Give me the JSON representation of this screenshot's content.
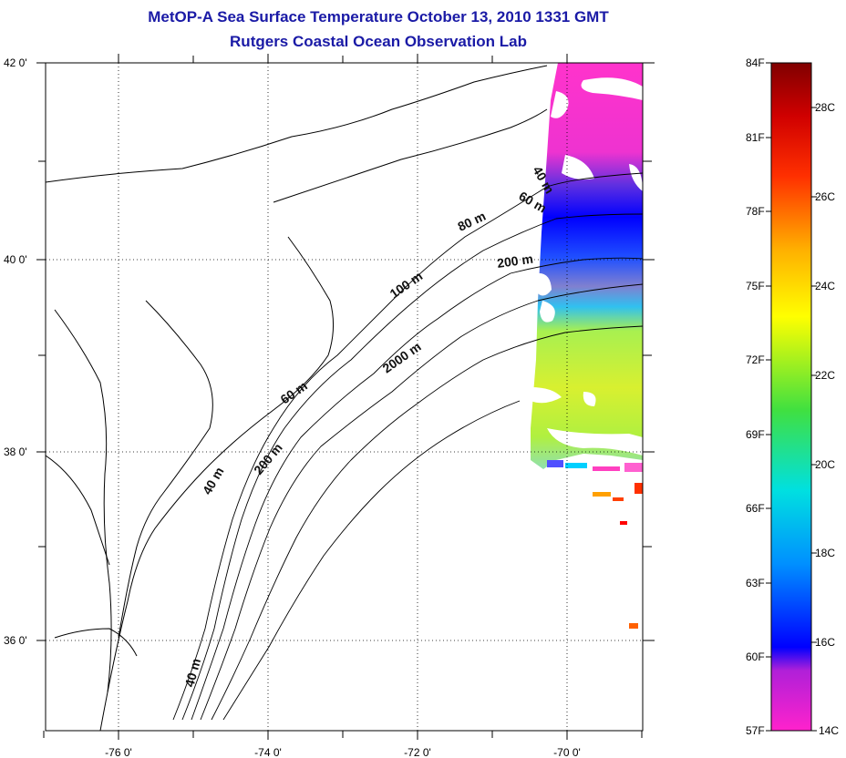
{
  "header": {
    "title": "MetOP-A Sea Surface Temperature October 13, 2010 1331 GMT",
    "subtitle": "Rutgers Coastal Ocean Observation Lab"
  },
  "map": {
    "lon_ticks": [
      "-76 0'",
      "-74 0'",
      "-72 0'",
      "-70 0'"
    ],
    "lat_ticks": [
      "42 0'",
      "40 0'",
      "38 0'",
      "36 0'"
    ],
    "depth_labels": [
      "40 m",
      "60 m",
      "80 m",
      "200 m",
      "100 m",
      "2000 m",
      "60 m",
      "40 m",
      "200 m",
      "40 m"
    ]
  },
  "colorbar": {
    "fahrenheit": [
      "84F",
      "81F",
      "78F",
      "75F",
      "72F",
      "69F",
      "66F",
      "63F",
      "60F",
      "57F"
    ],
    "celsius": [
      "28C",
      "26C",
      "24C",
      "22C",
      "20C",
      "18C",
      "16C",
      "14C"
    ],
    "colors": [
      "#ff22cc",
      "#8a1fd8",
      "#0000ff",
      "#00a0ff",
      "#00e8e8",
      "#30e030",
      "#ffff00",
      "#ffa000",
      "#ff2000",
      "#800000"
    ]
  }
}
